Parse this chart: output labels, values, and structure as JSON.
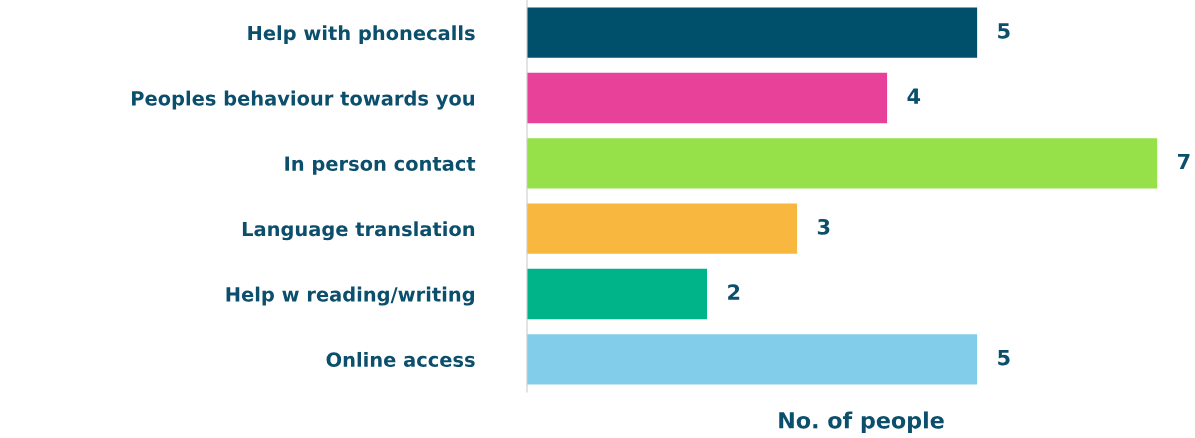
{
  "chart_data": {
    "type": "bar",
    "orientation": "horizontal",
    "categories": [
      "Help with phonecalls",
      "Peoples behaviour towards you",
      "In person contact",
      "Language translation",
      "Help w reading/writing",
      "Online access"
    ],
    "values": [
      5,
      4,
      7,
      3,
      2,
      5
    ],
    "colors": [
      "#00506b",
      "#e8419a",
      "#96e04a",
      "#f8b83f",
      "#00b48a",
      "#82cdea"
    ],
    "xlabel": "No. of people",
    "data_labels": true,
    "grid": false,
    "legend": false,
    "tick_labels": "y"
  }
}
